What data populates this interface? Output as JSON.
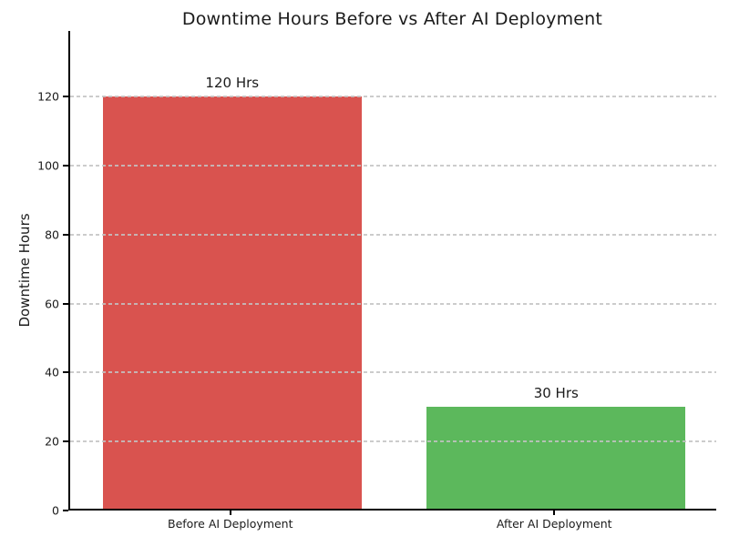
{
  "chart_data": {
    "type": "bar",
    "title": "Downtime Hours Before vs After AI Deployment",
    "xlabel": "",
    "ylabel": "Downtime Hours",
    "categories": [
      "Before AI Deployment",
      "After AI Deployment"
    ],
    "values": [
      120,
      30
    ],
    "bar_labels": [
      "120 Hrs",
      "30 Hrs"
    ],
    "bar_colors": [
      "#d9534f",
      "#5cb85c"
    ],
    "yticks": [
      0,
      20,
      40,
      60,
      80,
      100,
      120
    ],
    "ylim": [
      0,
      139
    ],
    "grid": "horizontal dashed",
    "gridline_color": "#c9c9c9",
    "legend": "none",
    "background_color": "#ffffff"
  }
}
